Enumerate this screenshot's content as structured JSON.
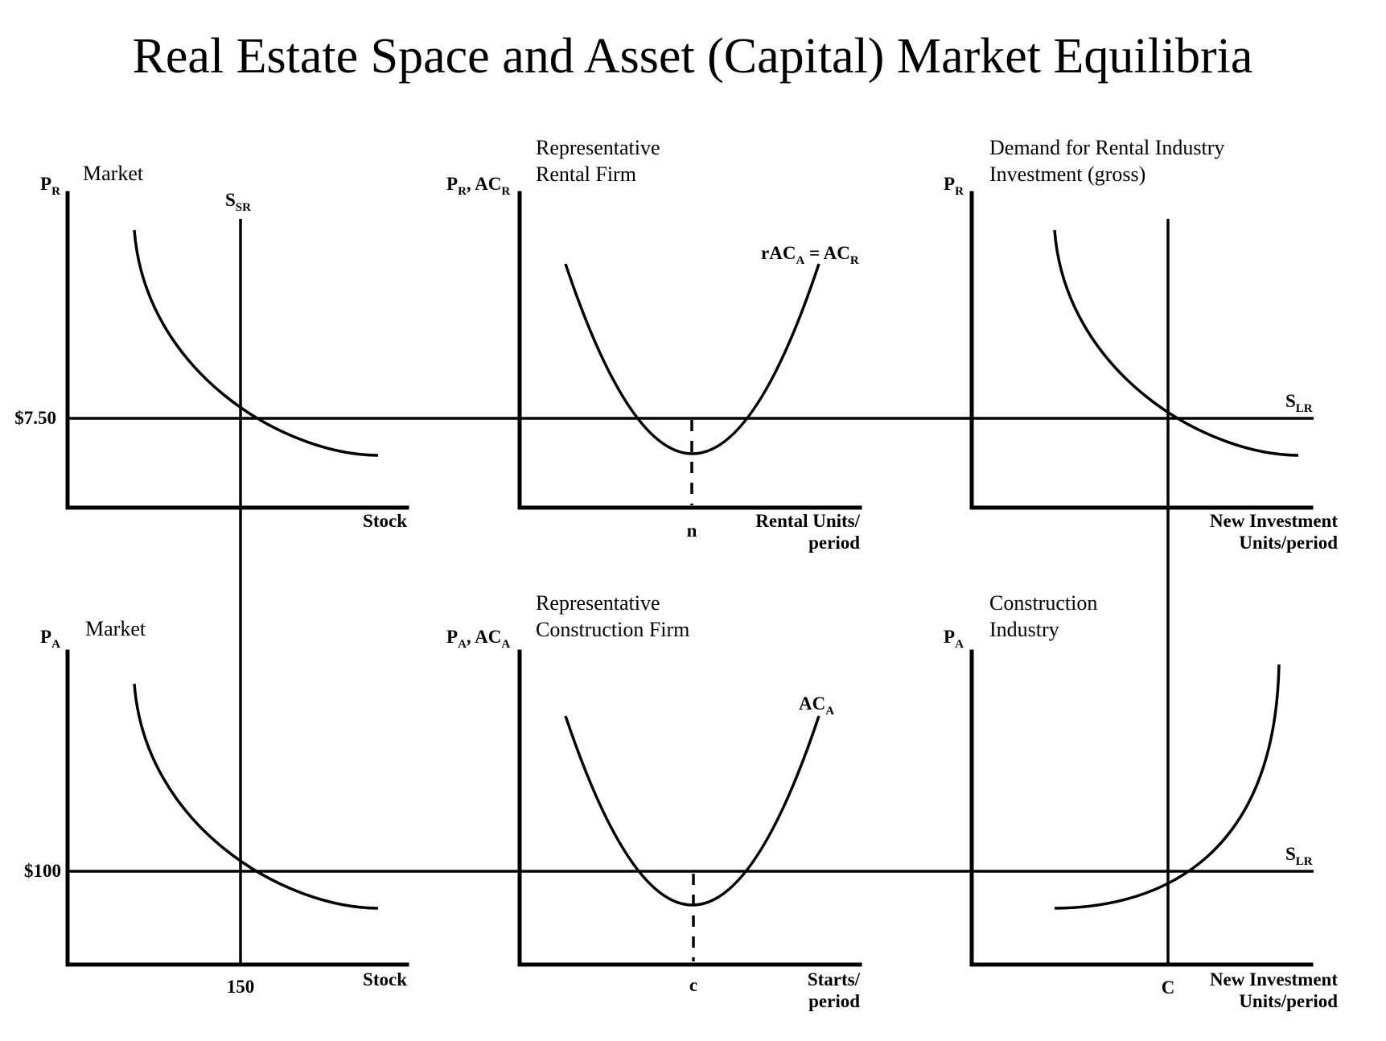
{
  "title": "Real Estate Space and Asset (Capital) Market Equilibria",
  "top_row": {
    "market_panel": {
      "label": "Market",
      "y_axis": {
        "main": "P",
        "sub": "R"
      },
      "supply_label": {
        "main": "S",
        "sub": "SR"
      },
      "price_tick": "$7.50",
      "x_label": "Stock"
    },
    "firm_panel": {
      "label_line1": "Representative",
      "label_line2": "Rental Firm",
      "y_axis": {
        "p": "P",
        "p_sub": "R",
        "sep": ", ",
        "ac": "AC",
        "ac_sub": "R"
      },
      "curve_label": {
        "r": "rAC",
        "r_sub": "A",
        "eq": " = AC",
        "eq_sub": "R"
      },
      "x_tick": "n",
      "x_label_line1": "Rental Units/",
      "x_label_line2": "period"
    },
    "industry_panel": {
      "label_line1": "Demand for Rental Industry",
      "label_line2": "Investment (gross)",
      "y_axis": {
        "main": "P",
        "sub": "R"
      },
      "supply_label": {
        "main": "S",
        "sub": "LR"
      },
      "x_label_line1": "New Investment",
      "x_label_line2": "Units/period"
    }
  },
  "bottom_row": {
    "market_panel": {
      "label": "Market",
      "y_axis": {
        "main": "P",
        "sub": "A"
      },
      "price_tick": "$100",
      "x_tick": "150",
      "x_label": "Stock"
    },
    "firm_panel": {
      "label_line1": "Representative",
      "label_line2": "Construction Firm",
      "y_axis": {
        "p": "P",
        "p_sub": "A",
        "sep": ", ",
        "ac": "AC",
        "ac_sub": "A"
      },
      "curve_label": {
        "main": "AC",
        "sub": "A"
      },
      "x_tick": "c",
      "x_label_line1": "Starts/",
      "x_label_line2": "period"
    },
    "industry_panel": {
      "label_line1": "Construction",
      "label_line2": "Industry",
      "y_axis": {
        "main": "P",
        "sub": "A"
      },
      "supply_label": {
        "main": "S",
        "sub": "LR"
      },
      "x_tick": "C",
      "x_label_line1": "New Investment",
      "x_label_line2": "Units/period"
    }
  }
}
